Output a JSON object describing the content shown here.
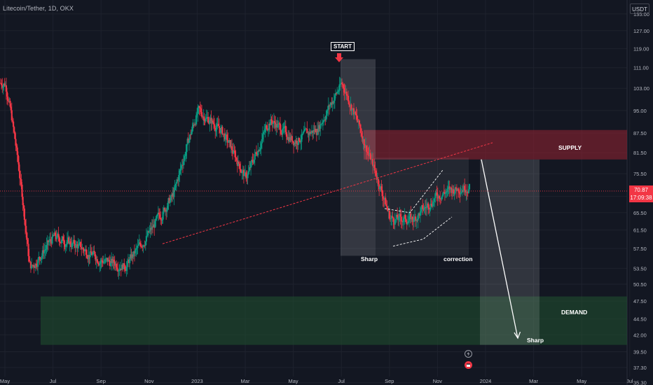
{
  "header": {
    "symbol_line": "Litecoin/Tether, 1D, OKX",
    "currency_button": "USDT"
  },
  "price_tag": {
    "price": "70.87",
    "countdown": "17:09:38"
  },
  "annotations": {
    "start": "START",
    "sharp_1": "Sharp",
    "correction": "correction",
    "supply": "SUPPLY",
    "demand": "DEMAND",
    "sharp_2": "Sharp"
  },
  "colors": {
    "background": "#131722",
    "up": "#089981",
    "down": "#f23645",
    "supply_zone": "#a0283a",
    "demand_zone": "#1e4a2e",
    "grid": "#1e222d"
  },
  "icons": {
    "event_1": "lightning-icon",
    "event_2": "calendar-icon"
  },
  "chart_data": {
    "type": "candlestick",
    "title": "Litecoin/Tether, 1D, OKX",
    "y_scale": "log",
    "y_ticks": [
      "135.00",
      "127.00",
      "119.00",
      "111.00",
      "103.00",
      "95.00",
      "87.50",
      "81.50",
      "75.50",
      "69.50",
      "65.50",
      "61.50",
      "57.50",
      "53.50",
      "50.50",
      "47.50",
      "44.50",
      "42.00",
      "39.50",
      "37.30",
      "35.30"
    ],
    "x_ticks": [
      "May",
      "Jul",
      "Sep",
      "Nov",
      "2023",
      "Mar",
      "May",
      "Jul",
      "Sep",
      "Nov",
      "2024",
      "Mar",
      "May",
      "Jul"
    ],
    "ylim": [
      35.0,
      142.0
    ],
    "last_price": 70.87,
    "zones": {
      "supply": {
        "low": 79.5,
        "high": 88.5
      },
      "demand": {
        "low": 40.5,
        "high": 48.3
      }
    },
    "key_levels": {
      "start_high": 114.5,
      "sharp_low": 56.0,
      "correction_high": 79.0
    },
    "series": [
      {
        "type": "price",
        "x": [
          "2022-05",
          "2022-06",
          "2022-07",
          "2022-08",
          "2022-09",
          "2022-10",
          "2022-11",
          "2022-12",
          "2023-01",
          "2023-02",
          "2023-03",
          "2023-04",
          "2023-05",
          "2023-06",
          "2023-07",
          "2023-08",
          "2023-09",
          "2023-10",
          "2023-11",
          "2023-12"
        ],
        "values": [
          105,
          53,
          60,
          58,
          55,
          54,
          61,
          70,
          95,
          88,
          74,
          92,
          85,
          89,
          105,
          83,
          64,
          64,
          70,
          72
        ]
      }
    ]
  }
}
